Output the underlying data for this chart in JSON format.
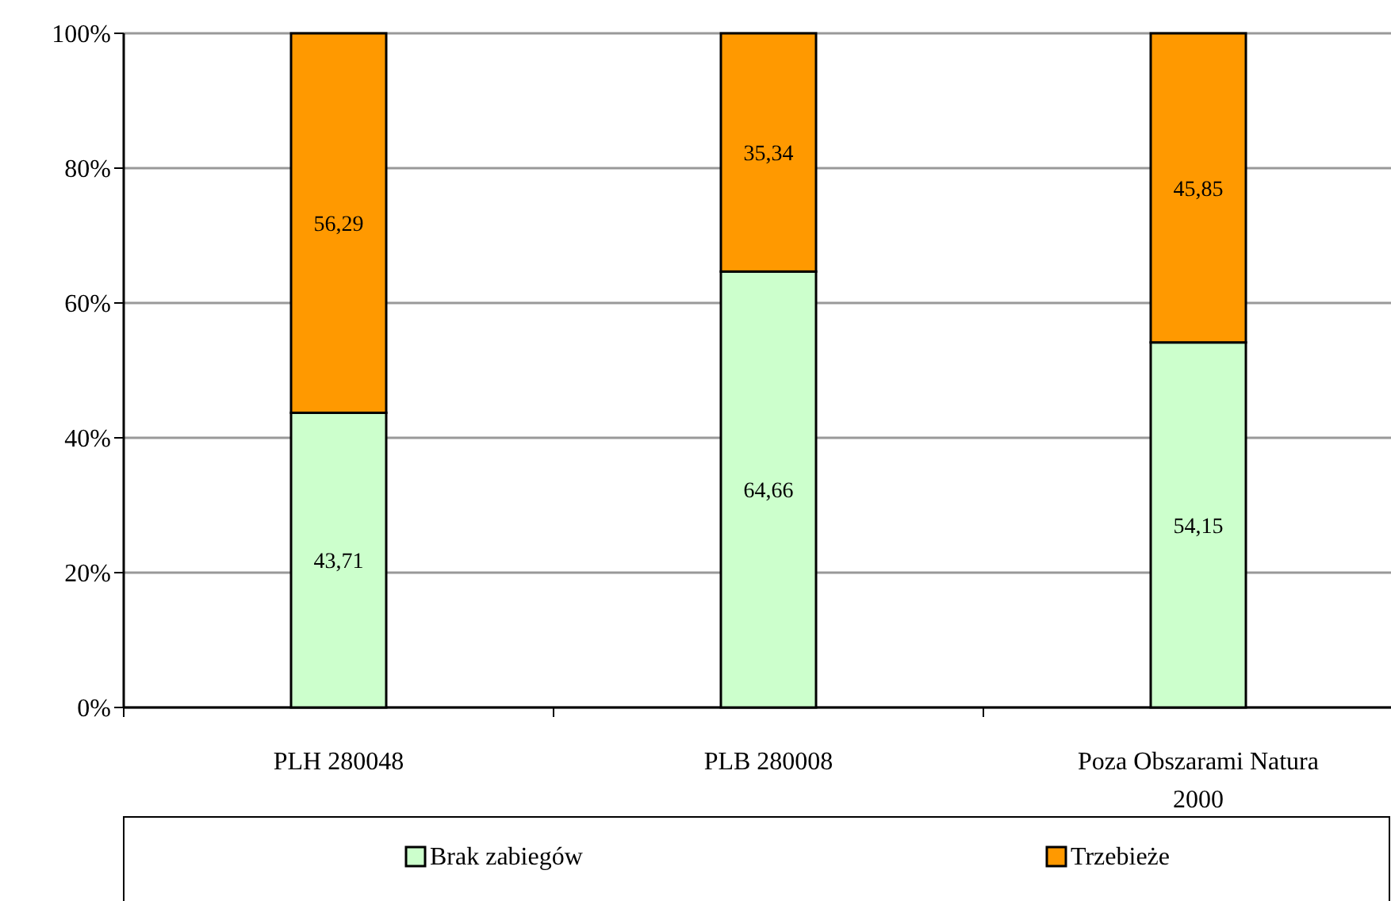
{
  "chart_data": {
    "type": "bar",
    "stacked": true,
    "categories": [
      "PLH 280048",
      "PLB 280008",
      "Poza Obszarami Natura 2000"
    ],
    "series": [
      {
        "name": "Brak zabiegów",
        "color": "#ccffcc",
        "values": [
          43.71,
          64.66,
          54.15
        ],
        "value_labels": [
          "43,71",
          "64,66",
          "54,15"
        ]
      },
      {
        "name": "Trzebieże",
        "color": "#ff9900",
        "values": [
          56.29,
          35.34,
          45.85
        ],
        "value_labels": [
          "56,29",
          "35,34",
          "45,85"
        ]
      }
    ],
    "ylim": [
      0,
      100
    ],
    "yticks": [
      {
        "value": 0,
        "label": "0%"
      },
      {
        "value": 20,
        "label": "20%"
      },
      {
        "value": 40,
        "label": "40%"
      },
      {
        "value": 60,
        "label": "60%"
      },
      {
        "value": 80,
        "label": "80%"
      },
      {
        "value": 100,
        "label": "100%"
      }
    ],
    "grid": "y",
    "legend": "bottom"
  }
}
